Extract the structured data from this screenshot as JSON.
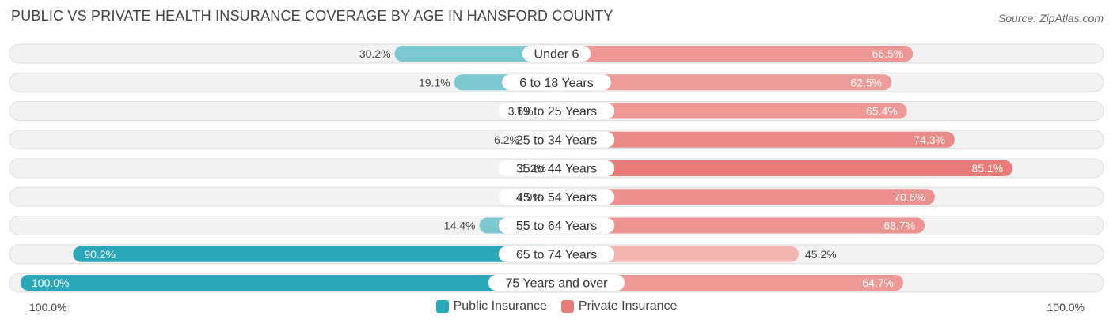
{
  "header": {
    "title": "PUBLIC VS PRIVATE HEALTH INSURANCE COVERAGE BY AGE IN HANSFORD COUNTY",
    "source": "Source: ZipAtlas.com"
  },
  "footer": {
    "left_axis_label": "100.0%",
    "right_axis_label": "100.0%"
  },
  "legend": {
    "public_label": "Public Insurance",
    "private_label": "Private Insurance",
    "public_color": "#2aa7b8",
    "private_color": "#e87b78"
  },
  "chart_data": {
    "type": "bar",
    "orientation": "horizontal-diverging",
    "title": "PUBLIC VS PRIVATE HEALTH INSURANCE COVERAGE BY AGE IN HANSFORD COUNTY",
    "categories": [
      "Under 6",
      "6 to 18 Years",
      "19 to 25 Years",
      "25 to 34 Years",
      "35 to 44 Years",
      "45 to 54 Years",
      "55 to 64 Years",
      "65 to 74 Years",
      "75 Years and over"
    ],
    "series": [
      {
        "name": "Public Insurance",
        "values": [
          30.2,
          19.1,
          3.6,
          6.2,
          1.2,
          1.9,
          14.4,
          90.2,
          100.0
        ],
        "labels": [
          "30.2%",
          "19.1%",
          "3.6%",
          "6.2%",
          "1.2%",
          "1.9%",
          "14.4%",
          "90.2%",
          "100.0%"
        ]
      },
      {
        "name": "Private Insurance",
        "values": [
          66.5,
          62.5,
          65.4,
          74.3,
          85.1,
          70.6,
          68.7,
          45.2,
          64.7
        ],
        "labels": [
          "66.5%",
          "62.5%",
          "65.4%",
          "74.3%",
          "85.1%",
          "70.6%",
          "68.7%",
          "45.2%",
          "64.7%"
        ]
      }
    ],
    "xlim": [
      0,
      100
    ],
    "legend_position": "bottom-center"
  }
}
